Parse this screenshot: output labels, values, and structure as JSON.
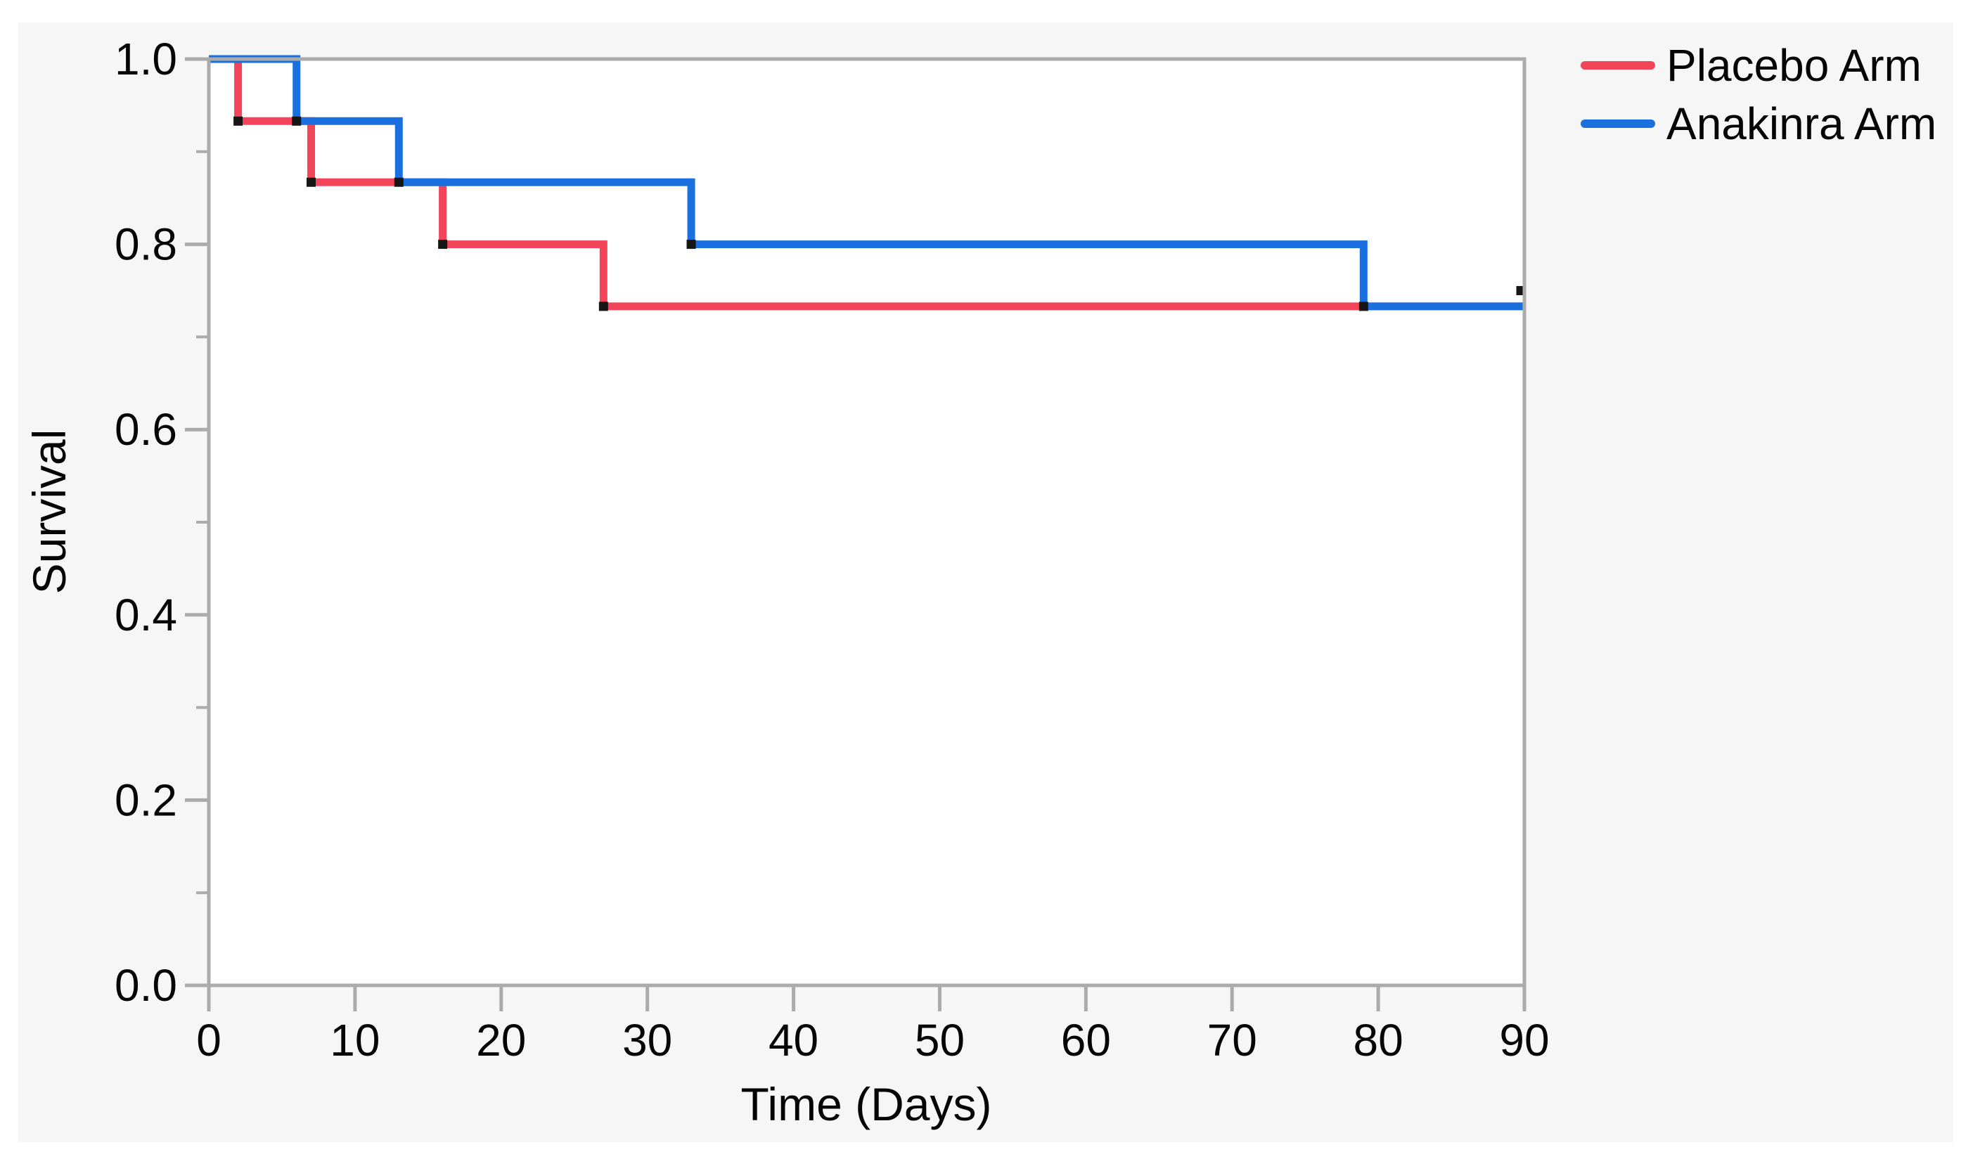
{
  "chart_data": {
    "type": "line",
    "variant": "kaplan-meier-step",
    "title": "",
    "xlabel": "Time (Days)",
    "ylabel": "Survival",
    "xlim": [
      0,
      90
    ],
    "ylim": [
      0.0,
      1.0
    ],
    "x_ticks": [
      0,
      10,
      20,
      30,
      40,
      50,
      60,
      70,
      80,
      90
    ],
    "y_major_ticks": [
      1.0,
      0.8,
      0.6,
      0.4,
      0.2,
      0.0
    ],
    "y_tick_labels": [
      "1.0",
      "0.8",
      "0.6",
      "0.4",
      "0.2",
      "0.0"
    ],
    "y_minor_ticks": [
      0.9,
      0.7,
      0.5,
      0.3,
      0.1
    ],
    "grid": false,
    "legend_position": "outside-top-right",
    "frame_color": "#ABABAB",
    "marker_color": "#161616",
    "series": [
      {
        "name": "Placebo Arm",
        "color": "#F2455A",
        "points": [
          {
            "day": 0,
            "survival": 1.0
          },
          {
            "day": 2,
            "survival": 0.933
          },
          {
            "day": 7,
            "survival": 0.867
          },
          {
            "day": 16,
            "survival": 0.8
          },
          {
            "day": 27,
            "survival": 0.733
          },
          {
            "day": 90,
            "survival": 0.733
          }
        ]
      },
      {
        "name": "Anakinra Arm",
        "color": "#1970DE",
        "points": [
          {
            "day": 0,
            "survival": 1.0
          },
          {
            "day": 6,
            "survival": 0.933
          },
          {
            "day": 13,
            "survival": 0.867
          },
          {
            "day": 33,
            "survival": 0.8
          },
          {
            "day": 79,
            "survival": 0.733
          },
          {
            "day": 90,
            "survival": 0.733
          }
        ]
      }
    ],
    "censor_marks": [
      {
        "day": 90,
        "survival": 0.75
      }
    ]
  },
  "legend": {
    "items": [
      {
        "label": "Placebo Arm",
        "color": "#F2455A"
      },
      {
        "label": "Anakinra Arm",
        "color": "#1970DE"
      }
    ]
  },
  "axes": {
    "x_title": "Time (Days)",
    "y_title": "Survival"
  }
}
